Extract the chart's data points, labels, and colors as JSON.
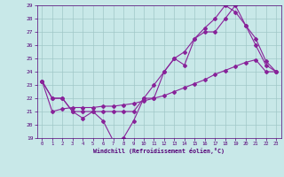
{
  "xlabel": "Windchill (Refroidissement éolien,°C)",
  "xlim": [
    -0.5,
    23.5
  ],
  "ylim": [
    19,
    29
  ],
  "xticks": [
    0,
    1,
    2,
    3,
    4,
    5,
    6,
    7,
    8,
    9,
    10,
    11,
    12,
    13,
    14,
    15,
    16,
    17,
    18,
    19,
    20,
    21,
    22,
    23
  ],
  "yticks": [
    19,
    20,
    21,
    22,
    23,
    24,
    25,
    26,
    27,
    28,
    29
  ],
  "bg_color": "#c8e8e8",
  "line_color": "#882299",
  "grid_color": "#a0c8c8",
  "line1_x": [
    0,
    1,
    2,
    3,
    4,
    5,
    6,
    7,
    8,
    9,
    10,
    11,
    12,
    13,
    14,
    15,
    16,
    17,
    18,
    19,
    20,
    21,
    22,
    23
  ],
  "line1_y": [
    23.3,
    22.0,
    22.0,
    21.0,
    21.0,
    21.0,
    20.3,
    18.8,
    19.0,
    20.3,
    22.0,
    22.0,
    24.0,
    25.0,
    24.5,
    26.5,
    27.0,
    27.0,
    28.0,
    29.0,
    27.5,
    26.0,
    24.5,
    24.0
  ],
  "line2_x": [
    0,
    1,
    2,
    3,
    4,
    5,
    6,
    7,
    8,
    9,
    10,
    11,
    12,
    13,
    14,
    15,
    16,
    17,
    18,
    19,
    20,
    21,
    22,
    23
  ],
  "line2_y": [
    23.3,
    21.0,
    21.2,
    21.3,
    21.3,
    21.3,
    21.4,
    21.4,
    21.5,
    21.6,
    21.8,
    22.0,
    22.2,
    22.5,
    22.8,
    23.1,
    23.4,
    23.8,
    24.1,
    24.4,
    24.7,
    24.9,
    24.0,
    24.0
  ],
  "line3_x": [
    0,
    1,
    2,
    3,
    4,
    5,
    6,
    7,
    8,
    9,
    10,
    11,
    12,
    13,
    14,
    15,
    16,
    17,
    18,
    19,
    20,
    21,
    22,
    23
  ],
  "line3_y": [
    23.3,
    22.0,
    22.0,
    21.0,
    20.5,
    21.0,
    21.0,
    21.0,
    21.0,
    21.0,
    22.0,
    23.0,
    24.0,
    25.0,
    25.5,
    26.5,
    27.3,
    28.0,
    29.0,
    28.5,
    27.5,
    26.5,
    24.8,
    24.0
  ]
}
